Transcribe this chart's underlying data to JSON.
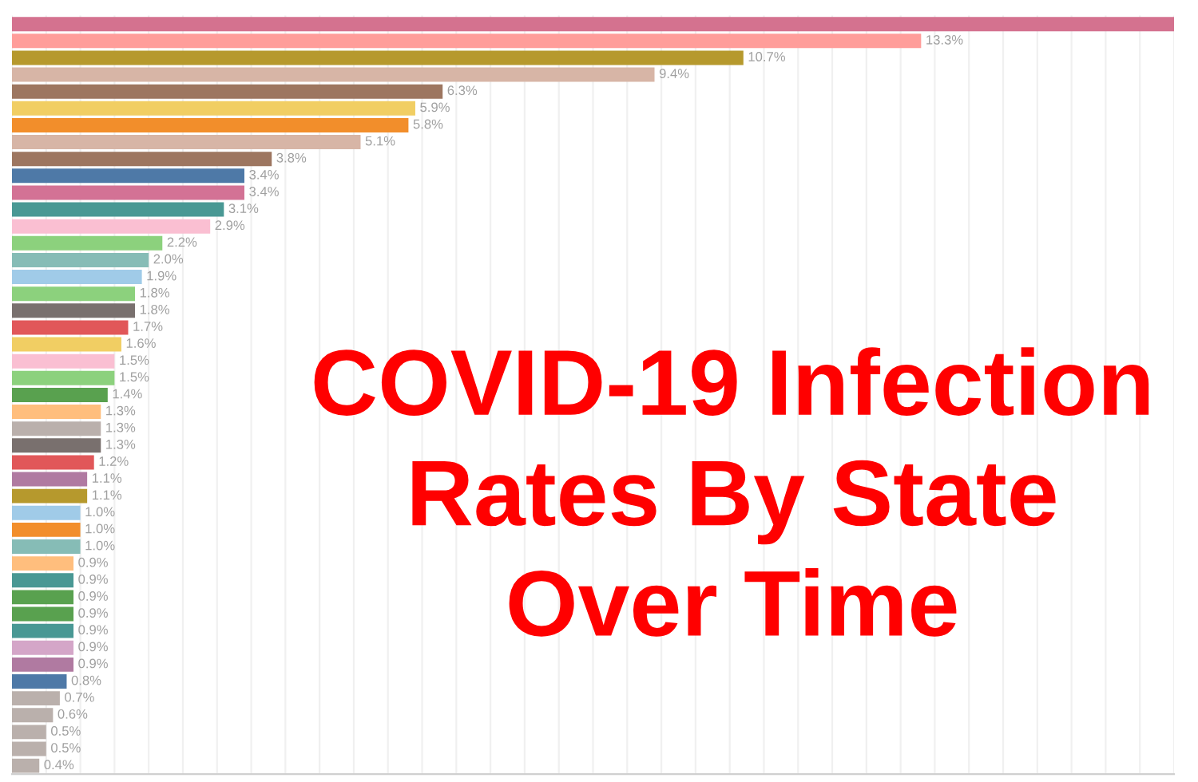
{
  "chart_data": {
    "type": "bar",
    "orientation": "horizontal",
    "title": "COVID-19 Infection\nRates By State\nOver Time",
    "categories": [
      null,
      null,
      null,
      null,
      null,
      null,
      null,
      null,
      null,
      null,
      null,
      null,
      null,
      null,
      null,
      null,
      null,
      null,
      null,
      null,
      null,
      null,
      null,
      null,
      null,
      null,
      null,
      null,
      null,
      null,
      null,
      null,
      null,
      null,
      null,
      null,
      null,
      null,
      null,
      null,
      null,
      null,
      null,
      null,
      null
    ],
    "values": [
      17,
      13.3,
      10.7,
      9.4,
      6.3,
      5.9,
      5.8,
      5.1,
      3.8,
      3.4,
      3.4,
      3.1,
      2.9,
      2.2,
      2.0,
      1.9,
      1.8,
      1.8,
      1.7,
      1.6,
      1.5,
      1.5,
      1.4,
      1.3,
      1.3,
      1.3,
      1.2,
      1.1,
      1.1,
      1.0,
      1.0,
      1.0,
      0.9,
      0.9,
      0.9,
      0.9,
      0.9,
      0.9,
      0.9,
      0.8,
      0.7,
      0.6,
      0.5,
      0.5,
      0.4
    ],
    "value_labels": [
      null,
      "13.3%",
      "10.7%",
      "9.4%",
      "6.3%",
      "5.9%",
      "5.8%",
      "5.1%",
      "3.8%",
      "3.4%",
      "3.4%",
      "3.1%",
      "2.9%",
      "2.2%",
      "2.0%",
      "1.9%",
      "1.8%",
      "1.8%",
      "1.7%",
      "1.6%",
      "1.5%",
      "1.5%",
      "1.4%",
      "1.3%",
      "1.3%",
      "1.3%",
      "1.2%",
      "1.1%",
      "1.1%",
      "1.0%",
      "1.0%",
      "1.0%",
      "0.9%",
      "0.9%",
      "0.9%",
      "0.9%",
      "0.9%",
      "0.9%",
      "0.9%",
      "0.8%",
      "0.7%",
      "0.6%",
      "0.5%",
      "0.5%",
      "0.4%"
    ],
    "colors": [
      "#d4728f",
      "#ff9d9a",
      "#b6992d",
      "#d7b5a6",
      "#9d7660",
      "#f1ce63",
      "#f28e2b",
      "#d7b5a6",
      "#9d7660",
      "#4e79a7",
      "#d37295",
      "#499894",
      "#fabfd2",
      "#8cd17d",
      "#86bcb6",
      "#a0cbe8",
      "#8cd17d",
      "#79706e",
      "#e15759",
      "#f1ce63",
      "#fabfd2",
      "#8cd17d",
      "#59a14f",
      "#ffbe7d",
      "#bab0ac",
      "#79706e",
      "#e15759",
      "#b07aa1",
      "#b6992d",
      "#a0cbe8",
      "#f28e2b",
      "#86bcb6",
      "#ffbe7d",
      "#499894",
      "#59a14f",
      "#59a14f",
      "#499894",
      "#d4a6c8",
      "#b07aa1",
      "#4e79a7",
      "#bab0ac",
      "#bab0ac",
      "#bab0ac",
      "#bab0ac",
      "#bab0ac"
    ],
    "xlim": [
      0,
      17
    ],
    "xticks": [
      {
        "value": 0,
        "label": null
      },
      {
        "value": 0.5,
        "label": null
      },
      {
        "value": 1,
        "label": null
      },
      {
        "value": 1.5,
        "label": null
      },
      {
        "value": 2,
        "label": null
      },
      {
        "value": 2.5,
        "label": null
      },
      {
        "value": 3,
        "label": null
      },
      {
        "value": 3.5,
        "label": null
      },
      {
        "value": 4,
        "label": null
      },
      {
        "value": 4.5,
        "label": null
      },
      {
        "value": 5,
        "label": null
      },
      {
        "value": 5.5,
        "label": null
      },
      {
        "value": 6,
        "label": null
      },
      {
        "value": 6.5,
        "label": null
      },
      {
        "value": 7,
        "label": null
      },
      {
        "value": 7.5,
        "label": null
      },
      {
        "value": 8,
        "label": null
      },
      {
        "value": 8.5,
        "label": null
      },
      {
        "value": 9,
        "label": null
      },
      {
        "value": 9.5,
        "label": null
      },
      {
        "value": 10,
        "label": null
      },
      {
        "value": 10.5,
        "label": null
      },
      {
        "value": 11,
        "label": null
      },
      {
        "value": 11.5,
        "label": null
      },
      {
        "value": 12,
        "label": null
      },
      {
        "value": 12.5,
        "label": null
      },
      {
        "value": 13,
        "label": null
      },
      {
        "value": 13.5,
        "label": null
      },
      {
        "value": 14,
        "label": null
      },
      {
        "value": 14.5,
        "label": null
      },
      {
        "value": 15,
        "label": null
      },
      {
        "value": 15.5,
        "label": null
      },
      {
        "value": 16,
        "label": null
      },
      {
        "value": 16.5,
        "label": null
      },
      {
        "value": 17,
        "label": null
      }
    ],
    "grid": "x"
  }
}
